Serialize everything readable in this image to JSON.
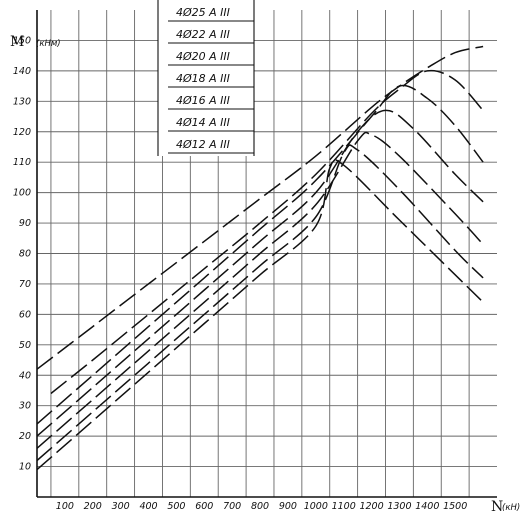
{
  "chart_data": {
    "type": "line",
    "xlabel": "N",
    "xunit": "(кН)",
    "ylabel": "M",
    "yunit": "(кНм)",
    "xlim": [
      0,
      1650
    ],
    "ylim": [
      0,
      160
    ],
    "xticks": [
      100,
      200,
      300,
      400,
      500,
      600,
      700,
      800,
      900,
      1000,
      1100,
      1200,
      1300,
      1400,
      1500
    ],
    "xtick_labels": [
      "100",
      "200",
      "300",
      "400",
      "500",
      "600",
      "700",
      "800",
      "900",
      "1000",
      "1100",
      "1200",
      "1300",
      "1400",
      "1500"
    ],
    "yticks": [
      10,
      20,
      30,
      40,
      50,
      60,
      70,
      80,
      90,
      100,
      110,
      120,
      130,
      140,
      150
    ],
    "ytick_labels": [
      "10",
      "20",
      "30",
      "40",
      "50",
      "60",
      "70",
      "80",
      "90",
      "100",
      "110",
      "120",
      "130",
      "140",
      "150"
    ],
    "grid": true,
    "legend_position": "top-center",
    "series": [
      {
        "name": "4Ø25 A III",
        "x": [
          0,
          200,
          400,
          600,
          800,
          1000,
          1200,
          1300,
          1400,
          1500,
          1600
        ],
        "y": [
          42,
          56,
          70,
          84,
          98,
          112,
          128,
          135,
          141,
          146,
          148
        ]
      },
      {
        "name": "4Ø22 A III",
        "x": [
          50,
          200,
          400,
          600,
          800,
          1000,
          1200,
          1300,
          1400,
          1500,
          1600
        ],
        "y": [
          34,
          45,
          60,
          75,
          90,
          106,
          126,
          134,
          140,
          137,
          127
        ]
      },
      {
        "name": "4Ø20 A III",
        "x": [
          0,
          200,
          400,
          600,
          800,
          1000,
          1200,
          1300,
          1400,
          1500,
          1600
        ],
        "y": [
          24,
          40,
          56,
          72,
          88,
          104,
          125,
          135,
          131,
          122,
          110
        ]
      },
      {
        "name": "4Ø18 A III",
        "x": [
          0,
          200,
          400,
          600,
          800,
          1000,
          1150,
          1250,
          1350,
          1500,
          1600
        ],
        "y": [
          20,
          36,
          52,
          68,
          84,
          100,
          120,
          127,
          121,
          106,
          97
        ]
      },
      {
        "name": "4Ø16 A III",
        "x": [
          0,
          200,
          400,
          600,
          800,
          1000,
          1150,
          1200,
          1300,
          1500,
          1600
        ],
        "y": [
          16,
          32,
          48,
          64,
          80,
          96,
          117,
          119,
          112,
          93,
          83
        ]
      },
      {
        "name": "4Ø14 A III",
        "x": [
          0,
          200,
          400,
          600,
          800,
          1000,
          1100,
          1150,
          1300,
          1500,
          1600
        ],
        "y": [
          12,
          28,
          44,
          60,
          76,
          92,
          113,
          114,
          101,
          81,
          72
        ]
      },
      {
        "name": "4Ø12 A III",
        "x": [
          0,
          200,
          400,
          600,
          800,
          1000,
          1050,
          1100,
          1300,
          1500,
          1600
        ],
        "y": [
          9,
          25,
          41,
          57,
          73,
          89,
          108,
          109,
          91,
          73,
          64
        ]
      }
    ]
  },
  "legend": {
    "items": [
      "4Ø25 A III",
      "4Ø22 A III",
      "4Ø20 A III",
      "4Ø18 A III",
      "4Ø16 A III",
      "4Ø14 A III",
      "4Ø12 A III"
    ]
  }
}
